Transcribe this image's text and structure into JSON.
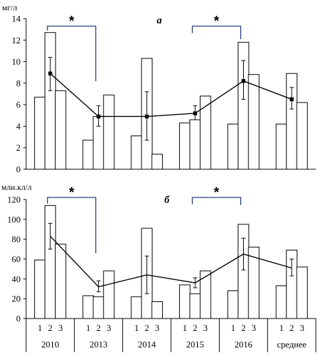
{
  "chart_data": [
    {
      "type": "bar",
      "panel_letter": "a",
      "ylabel": "мг/л",
      "ylim": [
        0,
        14
      ],
      "yticks": [
        0,
        2,
        4,
        6,
        8,
        10,
        12,
        14
      ],
      "groups": [
        "2010",
        "2013",
        "2014",
        "2015",
        "2016",
        "среднее"
      ],
      "subcategories": [
        "1",
        "2",
        "3"
      ],
      "bars": [
        [
          6.7,
          12.7,
          7.3
        ],
        [
          2.7,
          4.9,
          6.9
        ],
        [
          3.1,
          10.3,
          1.4
        ],
        [
          4.3,
          4.6,
          6.8
        ],
        [
          4.2,
          11.8,
          8.8
        ],
        [
          4.2,
          8.9,
          6.2
        ]
      ],
      "line_mean": [
        8.9,
        4.9,
        4.9,
        5.2,
        8.2,
        6.5
      ],
      "line_error": [
        [
          7.3,
          10.4
        ],
        [
          4.0,
          5.9
        ],
        [
          2.7,
          7.2
        ],
        [
          4.6,
          5.9
        ],
        [
          6.5,
          10.1
        ],
        [
          5.6,
          7.6
        ]
      ],
      "line_markers": true,
      "significance": [
        {
          "from_group": 0,
          "to_group": 1,
          "label": "*"
        },
        {
          "from_group": 3,
          "to_group": 4,
          "label": "*"
        }
      ]
    },
    {
      "type": "bar",
      "panel_letter": "б",
      "ylabel": "млн.кл/л",
      "ylim": [
        0,
        120
      ],
      "yticks": [
        0,
        20,
        40,
        60,
        80,
        100,
        120
      ],
      "groups": [
        "2010",
        "2013",
        "2014",
        "2015",
        "2016",
        "среднее"
      ],
      "subcategories": [
        "1",
        "2",
        "3"
      ],
      "bars": [
        [
          59,
          114,
          75
        ],
        [
          23,
          22,
          48
        ],
        [
          22,
          91,
          17
        ],
        [
          34,
          25,
          48
        ],
        [
          28,
          95,
          72
        ],
        [
          33,
          69,
          52
        ]
      ],
      "line_mean": [
        83,
        32,
        44,
        36,
        65,
        51
      ],
      "line_error": [
        [
          70,
          96
        ],
        [
          27,
          38
        ],
        [
          25,
          63
        ],
        [
          31,
          41
        ],
        [
          49,
          81
        ],
        [
          43,
          60
        ]
      ],
      "line_markers": false,
      "significance": [
        {
          "from_group": 0,
          "to_group": 1,
          "label": "*"
        },
        {
          "from_group": 3,
          "to_group": 4,
          "label": "*"
        }
      ]
    }
  ],
  "colors": {
    "bar_fill": "#ffffff",
    "bar_stroke": "#000000",
    "line": "#000000",
    "bracket": "#1f3a7a"
  }
}
